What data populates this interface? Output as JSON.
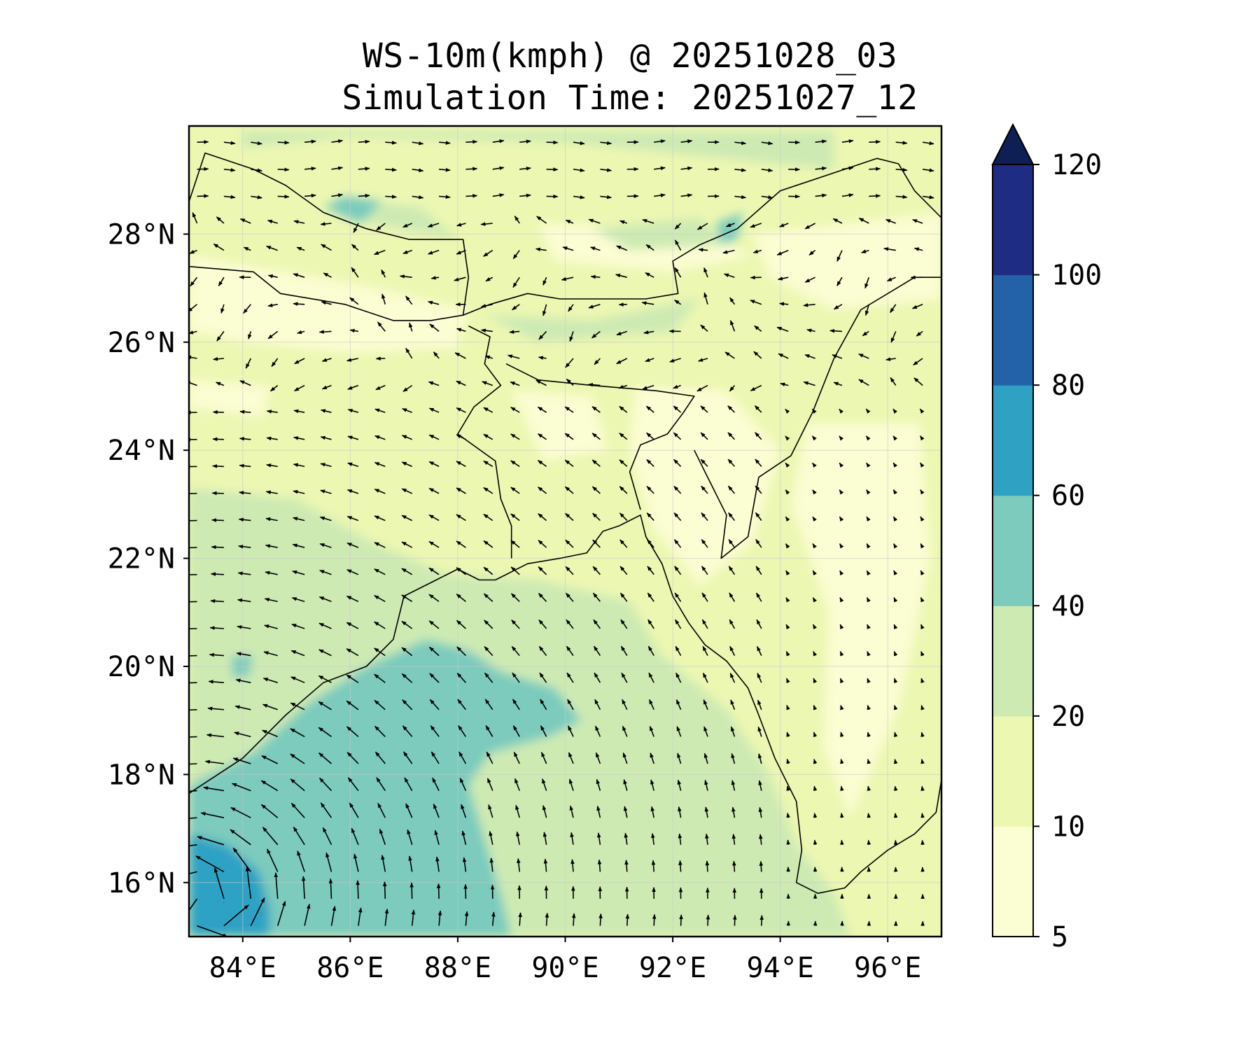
{
  "title": {
    "line1": "WS-10m(kmph) @ 20251028_03",
    "line2": "Simulation Time: 20251027_12"
  },
  "map": {
    "lon_range": [
      83,
      97
    ],
    "lat_range": [
      15,
      30
    ],
    "lon_ticks": [
      84,
      86,
      88,
      90,
      92,
      94,
      96
    ],
    "lat_ticks": [
      16,
      18,
      20,
      22,
      24,
      26,
      28
    ],
    "lon_tick_labels": [
      "84°E",
      "86°E",
      "88°E",
      "90°E",
      "92°E",
      "94°E",
      "96°E"
    ],
    "lat_tick_labels": [
      "16°N",
      "18°N",
      "20°N",
      "22°N",
      "24°N",
      "26°N",
      "28°N"
    ],
    "gridlines": true,
    "field": "10 m wind speed with wind vectors",
    "cyclone_center_approx": {
      "lon": 83.3,
      "lat": 15.6
    }
  },
  "colorbar": {
    "levels": [
      5,
      10,
      20,
      40,
      60,
      80,
      100,
      120
    ],
    "tick_labels": [
      "5",
      "10",
      "20",
      "40",
      "60",
      "80",
      "100",
      "120"
    ],
    "colors": [
      "#fbfdd2",
      "#ecf7b2",
      "#cdeab3",
      "#7ccbbd",
      "#2fa2c4",
      "#2362a9",
      "#1e2d83"
    ],
    "extend_color": "#0d1f55",
    "extend": "max"
  },
  "colors": {
    "land_coast": "#000000",
    "arrow": "#000000",
    "frame": "#000000"
  }
}
